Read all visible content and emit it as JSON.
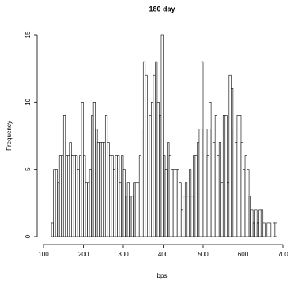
{
  "chart_data": {
    "type": "histogram",
    "title": "180 day",
    "x_label": "bps",
    "y_label": "Frequency",
    "bins": [
      120,
      125,
      130,
      135,
      140,
      145,
      150,
      155,
      160,
      165,
      170,
      175,
      180,
      185,
      190,
      195,
      200,
      205,
      210,
      215,
      220,
      225,
      230,
      235,
      240,
      245,
      250,
      255,
      260,
      265,
      270,
      275,
      280,
      285,
      290,
      295,
      300,
      305,
      310,
      315,
      320,
      325,
      330,
      335,
      340,
      345,
      350,
      355,
      360,
      365,
      370,
      375,
      380,
      385,
      390,
      395,
      400,
      405,
      410,
      415,
      420,
      425,
      430,
      435,
      440,
      445,
      450,
      455,
      460,
      465,
      470,
      475,
      480,
      485,
      490,
      495,
      500,
      505,
      510,
      515,
      520,
      525,
      530,
      535,
      540,
      545,
      550,
      555,
      560,
      565,
      570,
      575,
      580,
      585,
      590,
      595,
      600,
      605,
      610,
      615,
      620,
      625,
      630,
      635,
      640,
      645,
      650,
      655,
      660,
      665,
      670,
      675,
      680,
      685
    ],
    "values": [
      1,
      5,
      5,
      4,
      6,
      6,
      9,
      6,
      6,
      7,
      6,
      6,
      6,
      5,
      6,
      10,
      6,
      4,
      4,
      5,
      9,
      10,
      8,
      7,
      7,
      7,
      7,
      9,
      7,
      6,
      6,
      5,
      6,
      6,
      4,
      6,
      5,
      3,
      4,
      3,
      3,
      4,
      4,
      4,
      6,
      8,
      13,
      12,
      8,
      9,
      10,
      12,
      13,
      10,
      9,
      15,
      6,
      5,
      7,
      6,
      5,
      5,
      5,
      5,
      4,
      2,
      3,
      4,
      3,
      5,
      3,
      6,
      6,
      7,
      8,
      13,
      8,
      8,
      6,
      10,
      8,
      7,
      9,
      6,
      7,
      4,
      9,
      9,
      4,
      12,
      11,
      8,
      7,
      9,
      9,
      7,
      5,
      6,
      5,
      3,
      2,
      1,
      2,
      1,
      2,
      2,
      1,
      0,
      1,
      1,
      0,
      1,
      1
    ],
    "color": "#ffffff",
    "xlim": [
      100,
      700
    ],
    "xticks": [
      100,
      200,
      300,
      400,
      500,
      600,
      700
    ],
    "ylim": [
      0,
      15
    ],
    "yticks": [
      0,
      5,
      10,
      15
    ]
  }
}
